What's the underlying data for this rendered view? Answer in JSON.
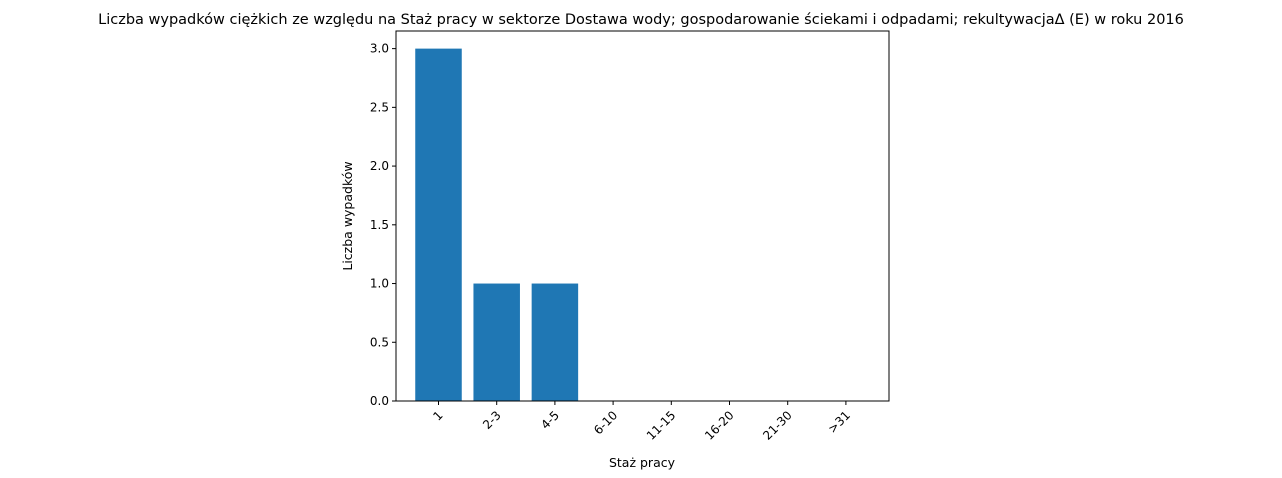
{
  "chart_data": {
    "type": "bar",
    "title": "Liczba wypadków ciężkich ze względu na Staż pracy w sektorze Dostawa wody; gospodarowanie ściekami i odpadami;  rekultywacjaΔ  (E) w roku 2016",
    "xlabel": "Staż pracy",
    "ylabel": "Liczba wypadków",
    "categories": [
      "1",
      "2-3",
      "4-5",
      "6-10",
      "11-15",
      "16-20",
      "21-30",
      ">31"
    ],
    "values": [
      3,
      1,
      1,
      0,
      0,
      0,
      0,
      0
    ],
    "ylim": [
      0,
      3.15
    ],
    "yticks": [
      "0.0",
      "0.5",
      "1.0",
      "1.5",
      "2.0",
      "2.5",
      "3.0"
    ],
    "bar_color": "#1f77b4",
    "grid": false,
    "legend": "none"
  }
}
